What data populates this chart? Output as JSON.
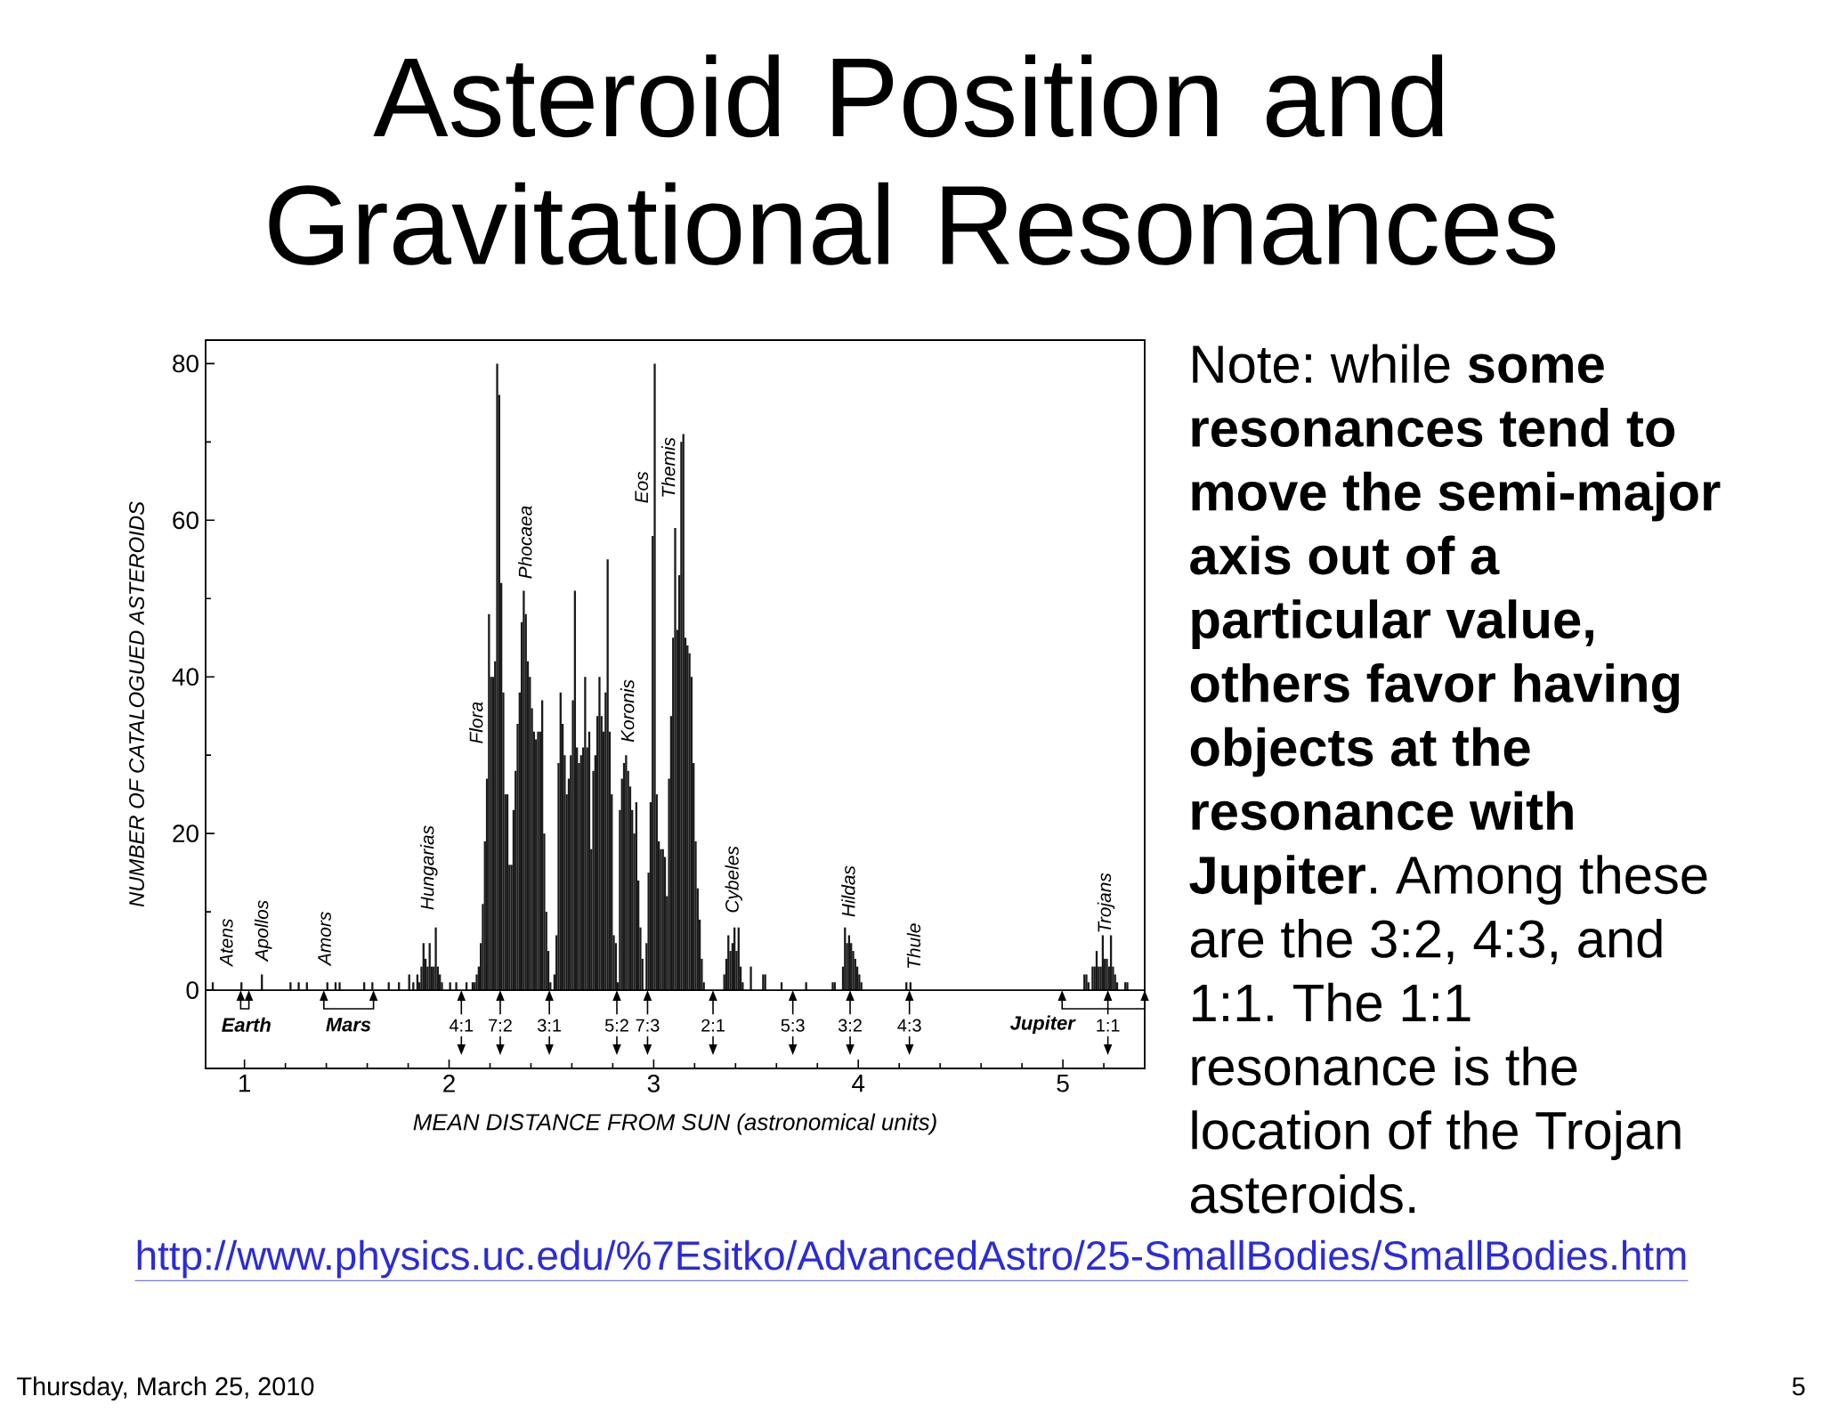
{
  "chart_data": {
    "type": "histogram",
    "title": "Asteroid Position and Gravitational Resonances",
    "xlabel": "MEAN DISTANCE FROM SUN (astronomical units)",
    "ylabel": "NUMBER OF CATALOGUED ASTEROIDS",
    "color": "#1a1a1a",
    "bins": [
      0.84,
      0.85,
      0.98,
      0.99,
      1.08,
      1.09,
      1.22,
      1.23,
      1.26,
      1.27,
      1.3,
      1.31,
      1.4,
      1.41,
      1.44,
      1.45,
      1.46,
      1.47,
      1.58,
      1.59,
      1.62,
      1.63,
      1.7,
      1.71,
      1.75,
      1.76,
      1.8,
      1.81,
      1.82,
      1.83,
      1.84,
      1.85,
      1.86,
      1.87,
      1.88,
      1.89,
      1.9,
      1.91,
      1.92,
      1.93,
      1.94,
      1.95,
      1.96,
      1.97,
      2.0,
      2.01,
      2.03,
      2.04,
      2.08,
      2.09,
      2.11,
      2.12,
      2.13,
      2.14,
      2.15,
      2.16,
      2.17,
      2.18,
      2.19,
      2.2,
      2.21,
      2.22,
      2.23,
      2.24,
      2.25,
      2.26,
      2.27,
      2.28,
      2.29,
      2.3,
      2.31,
      2.32,
      2.33,
      2.34,
      2.35,
      2.36,
      2.37,
      2.38,
      2.39,
      2.4,
      2.41,
      2.42,
      2.43,
      2.44,
      2.45,
      2.46,
      2.47,
      2.48,
      2.49,
      2.5,
      2.51,
      2.52,
      2.53,
      2.54,
      2.55,
      2.56,
      2.57,
      2.58,
      2.59,
      2.6,
      2.61,
      2.62,
      2.63,
      2.64,
      2.65,
      2.66,
      2.67,
      2.68,
      2.69,
      2.7,
      2.71,
      2.72,
      2.73,
      2.74,
      2.75,
      2.76,
      2.77,
      2.78,
      2.79,
      2.8,
      2.81,
      2.82,
      2.83,
      2.84,
      2.85,
      2.86,
      2.87,
      2.88,
      2.89,
      2.9,
      2.91,
      2.92,
      2.93,
      2.94,
      2.95,
      2.96,
      2.97,
      2.98,
      2.99,
      3.0,
      3.01,
      3.02,
      3.03,
      3.04,
      3.05,
      3.06,
      3.07,
      3.08,
      3.09,
      3.1,
      3.11,
      3.12,
      3.13,
      3.14,
      3.15,
      3.16,
      3.17,
      3.18,
      3.19,
      3.2,
      3.21,
      3.22,
      3.23,
      3.24,
      3.25,
      3.34,
      3.35,
      3.36,
      3.37,
      3.38,
      3.39,
      3.4,
      3.41,
      3.42,
      3.43,
      3.44,
      3.47,
      3.48,
      3.53,
      3.54,
      3.55,
      3.62,
      3.63,
      3.74,
      3.75,
      3.87,
      3.88,
      3.89,
      3.92,
      3.93,
      3.94,
      3.95,
      3.96,
      3.97,
      3.98,
      3.99,
      4.0,
      4.01,
      4.02,
      4.23,
      4.24,
      4.25,
      4.26,
      5.1,
      5.11,
      5.12,
      5.13,
      5.14,
      5.15,
      5.16,
      5.17,
      5.18,
      5.19,
      5.2,
      5.21,
      5.22,
      5.23,
      5.24,
      5.25,
      5.26,
      5.27,
      5.3,
      5.31,
      5.32
    ],
    "values": [
      1,
      0,
      1,
      0,
      2,
      0,
      1,
      0,
      1,
      0,
      1,
      0,
      1,
      0,
      1,
      0,
      1,
      0,
      1,
      0,
      1,
      0,
      1,
      0,
      1,
      0,
      2,
      0,
      1,
      0,
      2,
      1,
      3,
      6,
      4,
      3,
      6,
      3,
      3,
      8,
      3,
      2,
      1,
      0,
      1,
      0,
      1,
      0,
      1,
      0,
      1,
      1,
      2,
      3,
      6,
      11,
      19,
      27,
      48,
      40,
      40,
      42,
      80,
      76,
      52,
      38,
      25,
      25,
      16,
      16,
      23,
      28,
      34,
      38,
      47,
      51,
      48,
      42,
      40,
      36,
      33,
      32,
      33,
      33,
      37,
      20,
      10,
      5,
      1,
      0,
      2,
      7,
      29,
      38,
      34,
      30,
      25,
      27,
      30,
      37,
      51,
      31,
      29,
      30,
      31,
      40,
      31,
      33,
      18,
      28,
      30,
      35,
      40,
      35,
      33,
      38,
      55,
      33,
      25,
      7,
      6,
      1,
      23,
      27,
      29,
      30,
      28,
      26,
      23,
      20,
      24,
      14,
      8,
      4,
      0,
      6,
      15,
      24,
      58,
      80,
      25,
      19,
      18,
      18,
      17,
      12,
      27,
      35,
      45,
      59,
      46,
      53,
      70,
      71,
      45,
      44,
      43,
      40,
      29,
      19,
      13,
      9,
      4,
      1,
      0,
      2,
      4,
      7,
      5,
      6,
      8,
      5,
      8,
      3,
      1,
      0,
      3,
      0,
      2,
      2,
      0,
      1,
      0,
      1,
      0,
      1,
      1,
      0,
      3,
      8,
      6,
      7,
      6,
      5,
      4,
      3,
      2,
      1,
      0,
      1,
      0,
      1,
      0,
      2,
      2,
      1,
      0,
      3,
      3,
      5,
      3,
      3,
      7,
      4,
      4,
      3,
      7,
      3,
      2,
      1,
      0,
      1,
      1
    ],
    "xlim": [
      0.81,
      5.4
    ],
    "ylim": [
      -10,
      83
    ],
    "xticks": [
      1,
      {
        "value": 1.2,
        "label": null
      },
      {
        "value": 1.4,
        "label": null
      },
      {
        "value": 1.6,
        "label": null
      },
      {
        "value": 1.8,
        "label": null
      },
      2,
      {
        "value": 2.2,
        "label": null
      },
      {
        "value": 2.4,
        "label": null
      },
      {
        "value": 2.6,
        "label": null
      },
      {
        "value": 2.8,
        "label": null
      },
      3,
      {
        "value": 3.2,
        "label": null
      },
      {
        "value": 3.4,
        "label": null
      },
      {
        "value": 3.6,
        "label": null
      },
      {
        "value": 3.8,
        "label": null
      },
      4,
      {
        "value": 4.2,
        "label": null
      },
      {
        "value": 4.4,
        "label": null
      },
      {
        "value": 4.6,
        "label": null
      },
      {
        "value": 4.8,
        "label": null
      },
      5,
      {
        "value": 5.2,
        "label": null
      }
    ],
    "yticks": [
      0,
      {
        "value": 10,
        "label": null
      },
      20,
      {
        "value": 30,
        "label": null
      },
      40,
      {
        "value": 50,
        "label": null
      },
      60,
      {
        "value": 70,
        "label": null
      },
      80
    ],
    "ref_lines": [
      {
        "axis": "y",
        "value": 0
      }
    ],
    "annotations": [
      "Note: while **some resonances tend to move the semi-major axis out of a particular value, others favor having objects at the resonance with Jupiter**. Among these are the 3:2, 4:3, and 1:1. The 1:1 resonance is the location of the Trojan asteroids.",
      "http://www.physics.uc.edu/%7Esitko/AdvancedAstro/25-SmallBodies/SmallBodies.htm",
      "Thursday, March 25, 2010",
      "5",
      "Atens",
      "Apollos",
      "Amors",
      "Hungarias",
      "Flora",
      "Phocaea",
      "Koronis",
      "Eos",
      "Themis",
      "Cybeles",
      "Hildas",
      "Thule",
      "Trojans",
      "Earth",
      "Mars",
      "Jupiter",
      {
        "text": "4:1",
        "x": 2.06,
        "y": 0
      },
      {
        "text": "7:2",
        "x": 2.25,
        "y": 0
      },
      {
        "text": "3:1",
        "x": 2.49,
        "y": 0
      },
      {
        "text": "5:2",
        "x": 2.82,
        "y": 0
      },
      {
        "text": "7:3",
        "x": 2.97,
        "y": 0
      },
      {
        "text": "2:1",
        "x": 3.29,
        "y": 0
      },
      {
        "text": "5:3",
        "x": 3.68,
        "y": 0
      },
      {
        "text": "3:2",
        "x": 3.96,
        "y": 0
      },
      {
        "text": "4:3",
        "x": 4.25,
        "y": 0
      },
      {
        "text": "1:1",
        "x": 5.22,
        "y": 0
      }
    ]
  }
}
